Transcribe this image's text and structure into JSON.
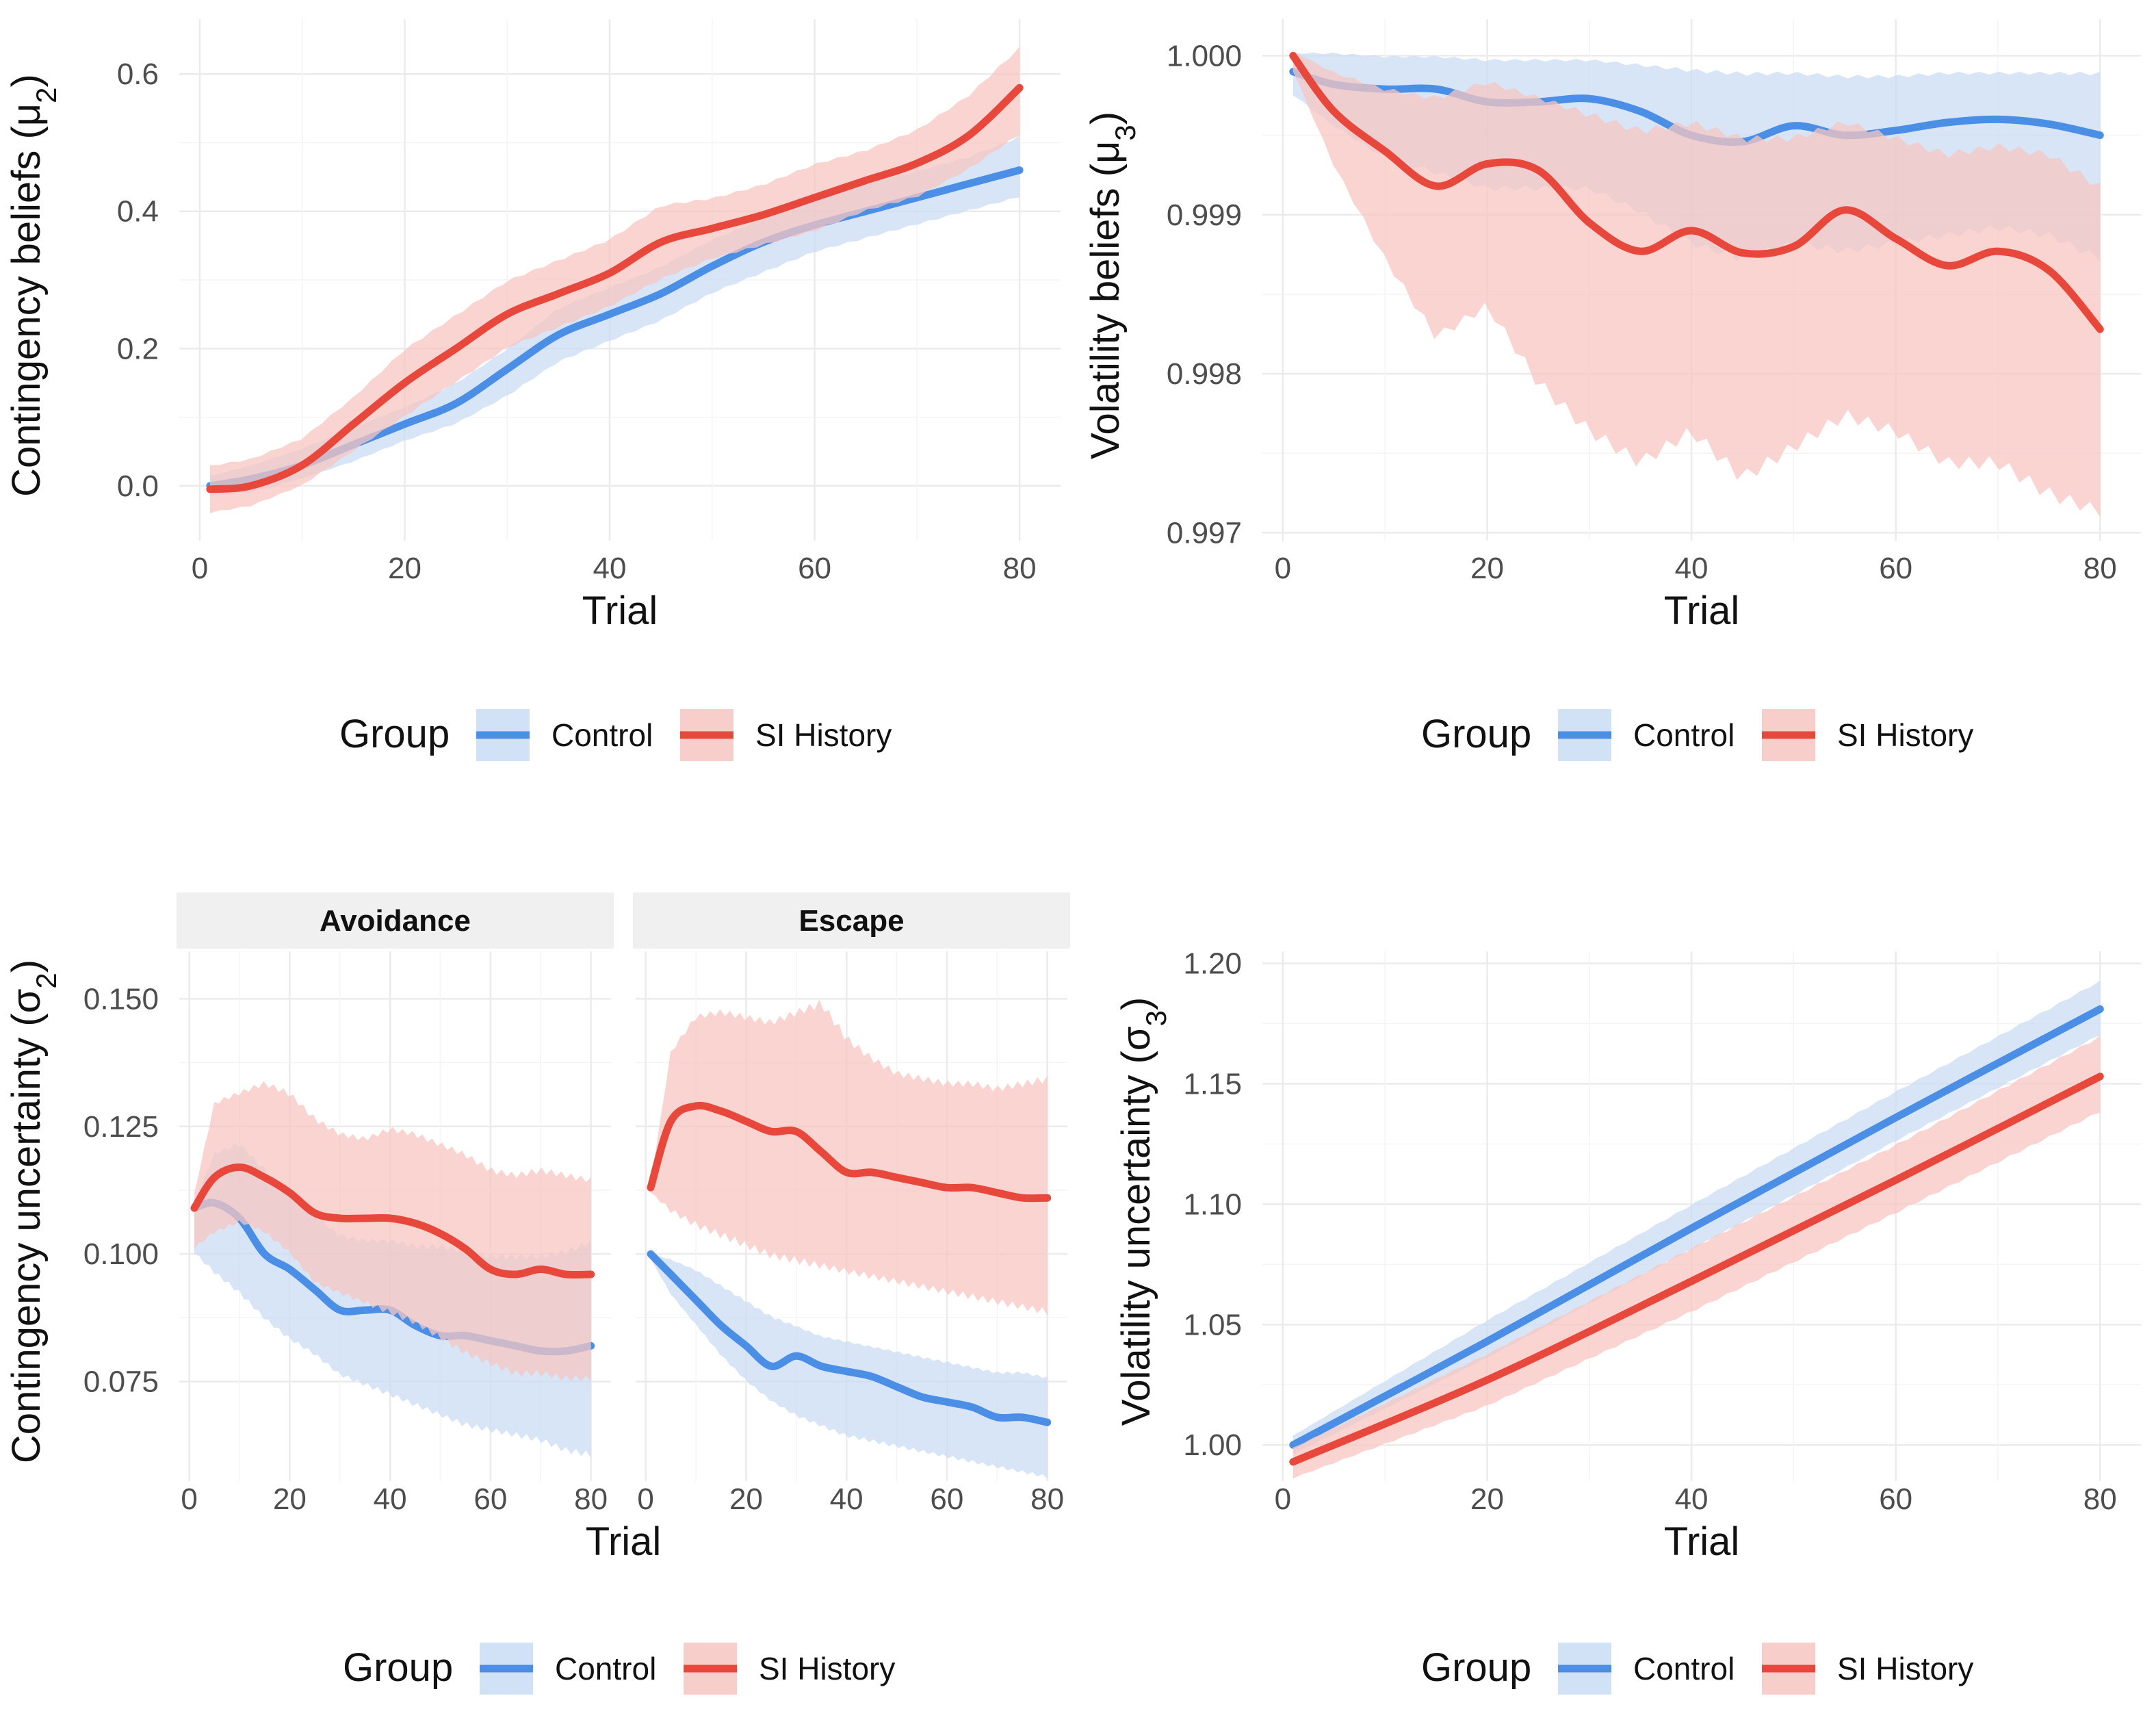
{
  "colors": {
    "control": "#4a8ee6",
    "si_history": "#e8473b",
    "control_band": "#c9dcf4",
    "si_band": "#f7c5c1",
    "grid": "#ebebeb",
    "strip_bg": "#f0f0f0"
  },
  "chart_data": [
    {
      "id": "mu2",
      "type": "line",
      "title": "",
      "xlabel": "Trial",
      "ylabel": "Contingency beliefs (μ2)",
      "xlim": [
        -2,
        84
      ],
      "ylim": [
        -0.08,
        0.68
      ],
      "xticks": [
        0,
        20,
        40,
        60,
        80
      ],
      "xtick_labels": [
        "0",
        "20",
        "40",
        "60",
        "80"
      ],
      "yticks": [
        0.0,
        0.2,
        0.4,
        0.6
      ],
      "ytick_labels": [
        "0.0",
        "0.2",
        "0.4",
        "0.6"
      ],
      "legend": {
        "title": "Group",
        "entries": [
          "Control",
          "SI History"
        ],
        "position": "bottom"
      },
      "series": [
        {
          "name": "Control",
          "x": [
            1,
            5,
            10,
            15,
            20,
            25,
            30,
            35,
            40,
            45,
            50,
            55,
            60,
            65,
            70,
            75,
            80
          ],
          "y": [
            0.0,
            0.01,
            0.03,
            0.06,
            0.09,
            0.12,
            0.17,
            0.22,
            0.25,
            0.28,
            0.32,
            0.355,
            0.38,
            0.4,
            0.42,
            0.44,
            0.46
          ],
          "lower": [
            -0.015,
            -0.01,
            0.01,
            0.035,
            0.065,
            0.09,
            0.13,
            0.18,
            0.21,
            0.24,
            0.28,
            0.31,
            0.34,
            0.36,
            0.38,
            0.4,
            0.42
          ],
          "upper": [
            0.015,
            0.03,
            0.055,
            0.085,
            0.115,
            0.15,
            0.2,
            0.26,
            0.29,
            0.32,
            0.36,
            0.39,
            0.42,
            0.44,
            0.46,
            0.48,
            0.51
          ]
        },
        {
          "name": "SI History",
          "x": [
            1,
            5,
            10,
            15,
            20,
            25,
            30,
            35,
            40,
            45,
            50,
            55,
            60,
            65,
            70,
            75,
            80
          ],
          "y": [
            -0.005,
            0.0,
            0.03,
            0.09,
            0.15,
            0.2,
            0.25,
            0.28,
            0.31,
            0.355,
            0.375,
            0.395,
            0.42,
            0.445,
            0.47,
            0.51,
            0.58
          ],
          "lower": [
            -0.04,
            -0.03,
            0.0,
            0.05,
            0.1,
            0.15,
            0.2,
            0.23,
            0.26,
            0.3,
            0.33,
            0.35,
            0.37,
            0.4,
            0.42,
            0.46,
            0.51
          ],
          "upper": [
            0.03,
            0.04,
            0.07,
            0.13,
            0.2,
            0.25,
            0.3,
            0.33,
            0.36,
            0.41,
            0.42,
            0.44,
            0.47,
            0.49,
            0.52,
            0.57,
            0.64
          ]
        }
      ]
    },
    {
      "id": "mu3",
      "type": "line",
      "title": "",
      "xlabel": "Trial",
      "ylabel": "Volatility beliefs (μ3)",
      "xlim": [
        -2,
        84
      ],
      "ylim": [
        0.99695,
        1.00023
      ],
      "xticks": [
        0,
        20,
        40,
        60,
        80
      ],
      "xtick_labels": [
        "0",
        "20",
        "40",
        "60",
        "80"
      ],
      "yticks": [
        0.997,
        0.998,
        0.999,
        1.0
      ],
      "ytick_labels": [
        "0.997",
        "0.998",
        "0.999",
        "1.000"
      ],
      "legend": {
        "title": "Group",
        "entries": [
          "Control",
          "SI History"
        ],
        "position": "bottom"
      },
      "series": [
        {
          "name": "Control",
          "x": [
            1,
            5,
            10,
            15,
            20,
            25,
            30,
            35,
            40,
            45,
            50,
            55,
            60,
            65,
            70,
            75,
            80
          ],
          "y": [
            0.9999,
            0.99982,
            0.99979,
            0.99979,
            0.99971,
            0.99971,
            0.99973,
            0.99965,
            0.9995,
            0.99946,
            0.99956,
            0.9995,
            0.99953,
            0.99958,
            0.9996,
            0.99957,
            0.9995
          ],
          "lower": [
            0.99975,
            0.99955,
            0.99935,
            0.99925,
            0.99915,
            0.99915,
            0.99915,
            0.999,
            0.9988,
            0.9987,
            0.9988,
            0.99875,
            0.9988,
            0.99885,
            0.9989,
            0.99885,
            0.9987
          ],
          "upper": [
            1.00002,
            1.00002,
            1.0,
            1.0,
            0.99998,
            0.99998,
            0.99998,
            0.99995,
            0.99992,
            0.9999,
            0.9999,
            0.99988,
            0.99988,
            0.9999,
            0.9999,
            0.9999,
            0.9999
          ]
        },
        {
          "name": "SI History",
          "x": [
            1,
            5,
            10,
            15,
            20,
            25,
            30,
            35,
            40,
            45,
            50,
            55,
            60,
            65,
            70,
            75,
            80
          ],
          "y": [
            1.0,
            0.99965,
            0.9994,
            0.99918,
            0.99932,
            0.99928,
            0.99895,
            0.99877,
            0.9989,
            0.99876,
            0.9988,
            0.99903,
            0.99885,
            0.99868,
            0.99877,
            0.99865,
            0.99828
          ],
          "lower": [
            0.9999,
            0.9993,
            0.9987,
            0.9982,
            0.9984,
            0.9979,
            0.9976,
            0.9974,
            0.9976,
            0.9973,
            0.9975,
            0.9977,
            0.9976,
            0.9974,
            0.9974,
            0.9972,
            0.9971
          ],
          "upper": [
            1.00003,
            0.9999,
            0.9998,
            0.99975,
            0.99985,
            0.99975,
            0.99965,
            0.99955,
            0.9996,
            0.9995,
            0.9995,
            0.9996,
            0.9995,
            0.9994,
            0.99945,
            0.9994,
            0.9992
          ]
        }
      ]
    },
    {
      "id": "sigma2",
      "type": "line",
      "title": "",
      "xlabel": "Trial",
      "ylabel": "Contingency uncertainty (σ2)",
      "ylim": [
        0.0555,
        0.1593
      ],
      "yticks": [
        0.075,
        0.1,
        0.125,
        0.15
      ],
      "ytick_labels": [
        "0.075",
        "0.100",
        "0.125",
        "0.150"
      ],
      "xticks": [
        0,
        20,
        40,
        60,
        80
      ],
      "xtick_labels": [
        "0",
        "20",
        "40",
        "60",
        "80"
      ],
      "legend": {
        "title": "Group",
        "entries": [
          "Control",
          "SI History"
        ],
        "position": "bottom"
      },
      "facets": [
        {
          "label": "Avoidance",
          "xlim": [
            -2,
            84
          ],
          "series": [
            {
              "name": "Control",
              "x": [
                1,
                5,
                10,
                15,
                20,
                25,
                30,
                35,
                40,
                45,
                50,
                55,
                60,
                65,
                70,
                75,
                80
              ],
              "y": [
                0.109,
                0.11,
                0.107,
                0.1,
                0.097,
                0.093,
                0.089,
                0.089,
                0.089,
                0.086,
                0.084,
                0.084,
                0.083,
                0.082,
                0.081,
                0.081,
                0.082
              ],
              "lower": [
                0.1,
                0.096,
                0.092,
                0.087,
                0.083,
                0.08,
                0.076,
                0.074,
                0.072,
                0.07,
                0.068,
                0.066,
                0.065,
                0.064,
                0.063,
                0.061,
                0.06
              ],
              "upper": [
                0.11,
                0.12,
                0.122,
                0.117,
                0.112,
                0.108,
                0.104,
                0.103,
                0.103,
                0.102,
                0.102,
                0.101,
                0.1,
                0.1,
                0.1,
                0.101,
                0.103
              ]
            },
            {
              "name": "SI History",
              "x": [
                1,
                5,
                10,
                15,
                20,
                25,
                30,
                35,
                40,
                45,
                50,
                55,
                60,
                65,
                70,
                75,
                80
              ],
              "y": [
                0.109,
                0.115,
                0.117,
                0.115,
                0.112,
                0.108,
                0.107,
                0.107,
                0.107,
                0.106,
                0.104,
                0.101,
                0.097,
                0.096,
                0.097,
                0.096,
                0.096
              ],
              "lower": [
                0.101,
                0.104,
                0.106,
                0.104,
                0.1,
                0.094,
                0.092,
                0.09,
                0.088,
                0.086,
                0.083,
                0.08,
                0.078,
                0.076,
                0.076,
                0.075,
                0.075
              ],
              "upper": [
                0.112,
                0.13,
                0.132,
                0.134,
                0.132,
                0.127,
                0.124,
                0.123,
                0.125,
                0.124,
                0.122,
                0.12,
                0.117,
                0.116,
                0.117,
                0.116,
                0.115
              ]
            }
          ]
        },
        {
          "label": "Escape",
          "xlim": [
            -2,
            84
          ],
          "series": [
            {
              "name": "Control",
              "x": [
                1,
                5,
                10,
                15,
                20,
                25,
                30,
                35,
                40,
                45,
                50,
                55,
                60,
                65,
                70,
                75,
                80
              ],
              "y": [
                0.1,
                0.096,
                0.091,
                0.086,
                0.082,
                0.078,
                0.08,
                0.078,
                0.077,
                0.076,
                0.074,
                0.072,
                0.071,
                0.07,
                0.068,
                0.068,
                0.067
              ],
              "lower": [
                0.099,
                0.092,
                0.086,
                0.08,
                0.075,
                0.071,
                0.068,
                0.066,
                0.064,
                0.063,
                0.062,
                0.061,
                0.06,
                0.059,
                0.058,
                0.057,
                0.056
              ],
              "upper": [
                0.1,
                0.099,
                0.097,
                0.094,
                0.091,
                0.088,
                0.086,
                0.084,
                0.083,
                0.082,
                0.081,
                0.08,
                0.079,
                0.078,
                0.077,
                0.077,
                0.076
              ]
            },
            {
              "name": "SI History",
              "x": [
                1,
                5,
                10,
                15,
                20,
                25,
                30,
                35,
                40,
                45,
                50,
                55,
                60,
                65,
                70,
                75,
                80
              ],
              "y": [
                0.113,
                0.126,
                0.129,
                0.128,
                0.126,
                0.124,
                0.124,
                0.12,
                0.116,
                0.116,
                0.115,
                0.114,
                0.113,
                0.113,
                0.112,
                0.111,
                0.111
              ],
              "lower": [
                0.112,
                0.108,
                0.105,
                0.103,
                0.101,
                0.099,
                0.098,
                0.097,
                0.096,
                0.095,
                0.094,
                0.093,
                0.092,
                0.091,
                0.09,
                0.089,
                0.088
              ],
              "upper": [
                0.114,
                0.14,
                0.147,
                0.148,
                0.147,
                0.146,
                0.148,
                0.15,
                0.143,
                0.139,
                0.136,
                0.135,
                0.134,
                0.134,
                0.133,
                0.134,
                0.135
              ]
            }
          ]
        }
      ]
    },
    {
      "id": "sigma3",
      "type": "line",
      "title": "",
      "xlabel": "Trial",
      "ylabel": "Volatility uncertainty (σ3)",
      "xlim": [
        -2,
        84
      ],
      "ylim": [
        0.985,
        1.205
      ],
      "xticks": [
        0,
        20,
        40,
        60,
        80
      ],
      "xtick_labels": [
        "0",
        "20",
        "40",
        "60",
        "80"
      ],
      "yticks": [
        1.0,
        1.05,
        1.1,
        1.15,
        1.2
      ],
      "ytick_labels": [
        "1.00",
        "1.05",
        "1.10",
        "1.15",
        "1.20"
      ],
      "legend": {
        "title": "Group",
        "entries": [
          "Control",
          "SI History"
        ],
        "position": "bottom"
      },
      "series": [
        {
          "name": "Control",
          "x": [
            1,
            20,
            40,
            60,
            80
          ],
          "y": [
            1.0,
            1.043,
            1.09,
            1.136,
            1.181
          ],
          "lower": [
            0.996,
            1.036,
            1.081,
            1.126,
            1.17
          ],
          "upper": [
            1.004,
            1.052,
            1.1,
            1.147,
            1.193
          ]
        },
        {
          "name": "SI History",
          "x": [
            1,
            20,
            40,
            60,
            80
          ],
          "y": [
            0.993,
            1.027,
            1.068,
            1.11,
            1.153
          ],
          "lower": [
            0.986,
            1.016,
            1.055,
            1.096,
            1.138
          ],
          "upper": [
            0.999,
            1.038,
            1.082,
            1.125,
            1.17
          ]
        }
      ]
    }
  ]
}
